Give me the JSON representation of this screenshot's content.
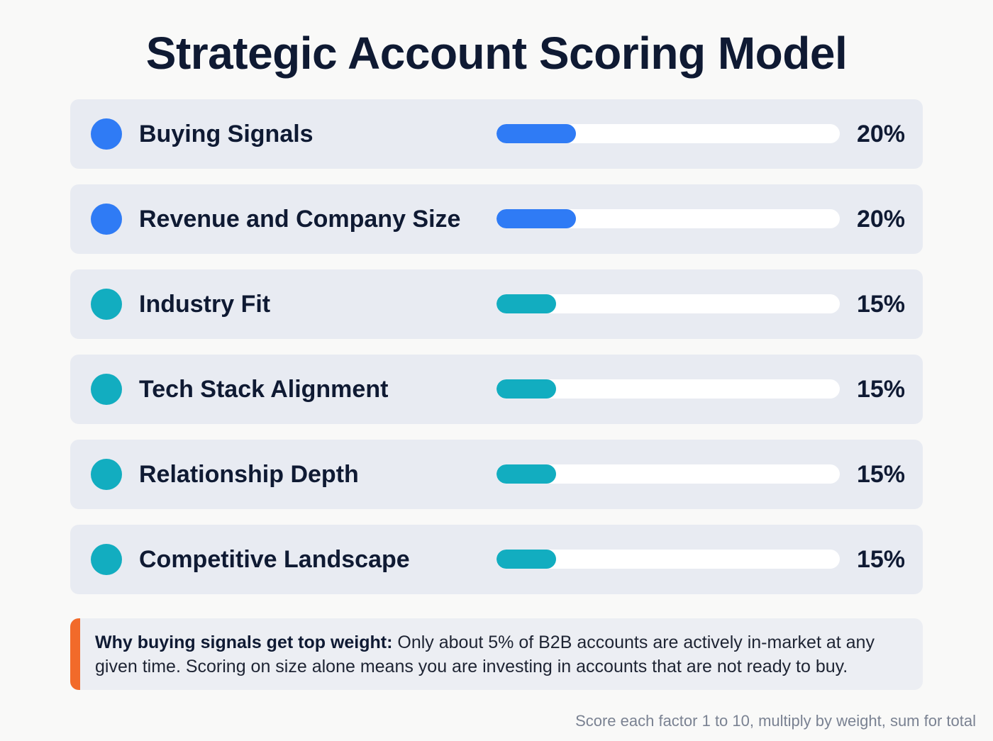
{
  "title": "Strategic Account Scoring Model",
  "colors": {
    "blue": "#2f7bf5",
    "teal": "#12adc0",
    "accent_orange": "#f26a2a",
    "card_bg": "#e8ebf2",
    "text_dark": "#0f1a33"
  },
  "factors": [
    {
      "label": "Buying Signals",
      "weight": 20,
      "weight_label": "20%",
      "color": "#2f7bf5"
    },
    {
      "label": "Revenue and Company Size",
      "weight": 20,
      "weight_label": "20%",
      "color": "#2f7bf5"
    },
    {
      "label": "Industry Fit",
      "weight": 15,
      "weight_label": "15%",
      "color": "#12adc0"
    },
    {
      "label": "Tech Stack Alignment",
      "weight": 15,
      "weight_label": "15%",
      "color": "#12adc0"
    },
    {
      "label": "Relationship Depth",
      "weight": 15,
      "weight_label": "15%",
      "color": "#12adc0"
    },
    {
      "label": "Competitive Landscape",
      "weight": 15,
      "weight_label": "15%",
      "color": "#12adc0"
    }
  ],
  "callout": {
    "heading": "Why buying signals get top weight:",
    "body": " Only about 5% of B2B accounts are actively in-market at any given time. Scoring on size alone means you are investing in accounts that are not ready to buy."
  },
  "footnote": "Score each factor 1 to 10, multiply by weight, sum for total",
  "chart_data": {
    "type": "bar",
    "title": "Strategic Account Scoring Model",
    "categories": [
      "Buying Signals",
      "Revenue and Company Size",
      "Industry Fit",
      "Tech Stack Alignment",
      "Relationship Depth",
      "Competitive Landscape"
    ],
    "values": [
      20,
      20,
      15,
      15,
      15,
      15
    ],
    "unit": "%",
    "orientation": "horizontal",
    "xlim": [
      0,
      100
    ]
  }
}
